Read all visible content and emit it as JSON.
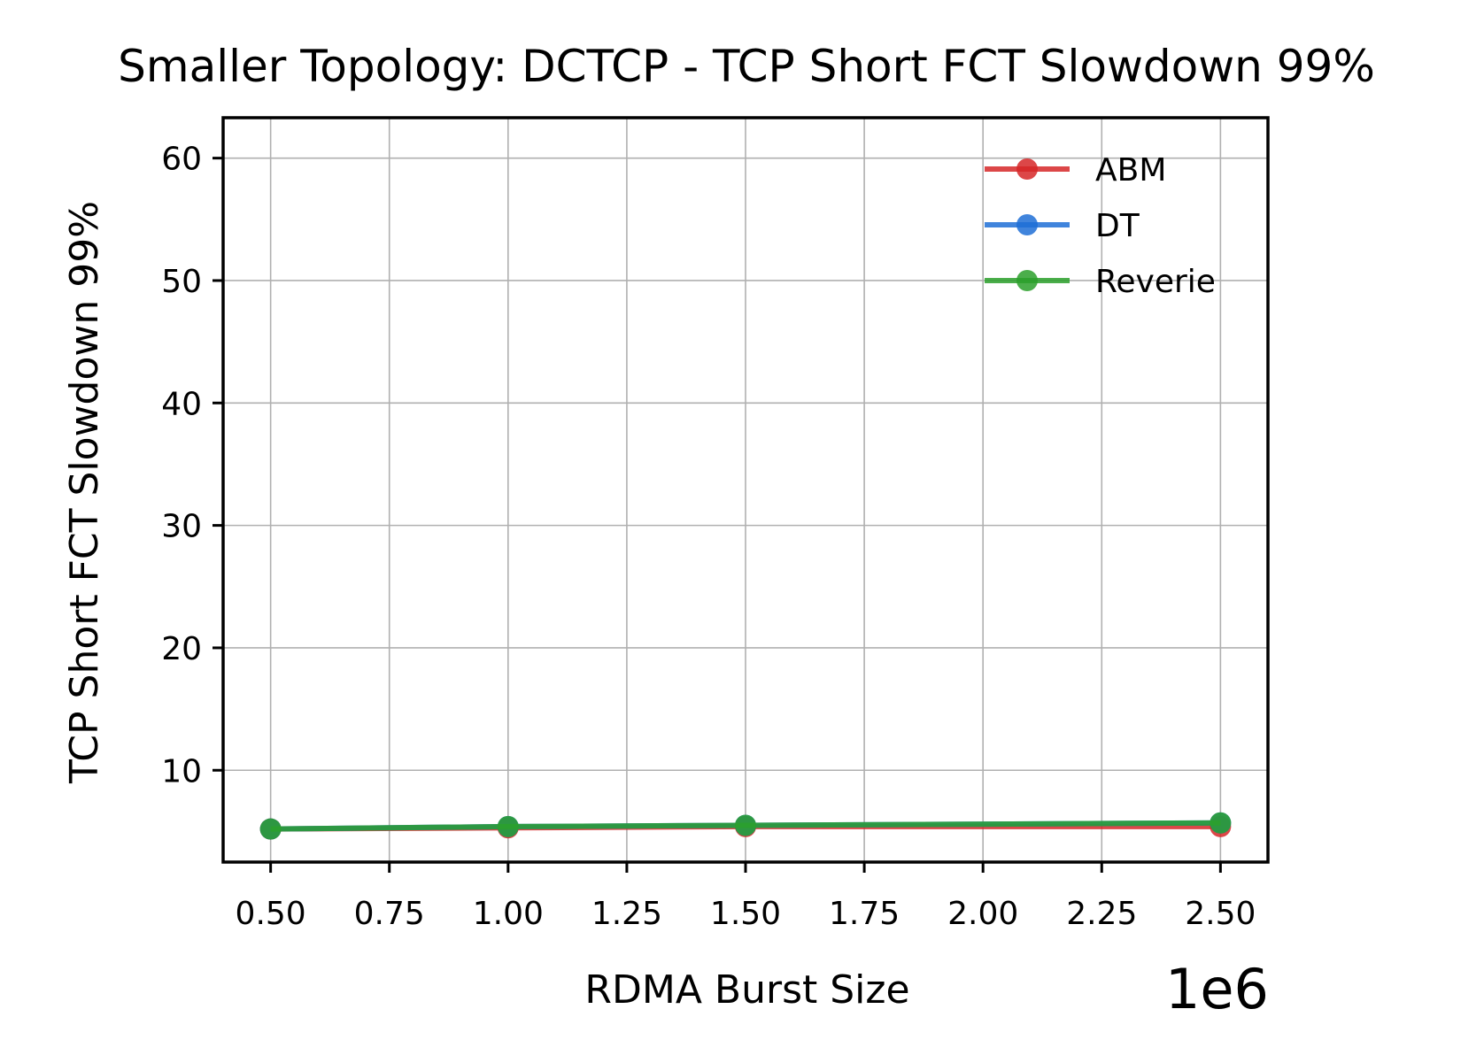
{
  "chart_data": {
    "type": "line",
    "title": "Smaller Topology: DCTCP - TCP Short FCT Slowdown 99%",
    "xlabel": "RDMA Burst Size",
    "ylabel": "TCP Short FCT Slowdown 99%",
    "x_offset_label": "1e6",
    "x": [
      500000,
      1000000,
      1500000,
      2000000,
      2500000
    ],
    "xlim": [
      400000,
      2600000
    ],
    "ylim": [
      2.5,
      63.3
    ],
    "xticks": [
      500000,
      750000,
      1000000,
      1250000,
      1500000,
      1750000,
      2000000,
      2250000,
      2500000
    ],
    "xtick_labels": [
      "0.50",
      "0.75",
      "1.00",
      "1.25",
      "1.50",
      "1.75",
      "2.00",
      "2.25",
      "2.50"
    ],
    "yticks": [
      10,
      20,
      30,
      40,
      50,
      60
    ],
    "ytick_labels": [
      "10",
      "20",
      "30",
      "40",
      "50",
      "60"
    ],
    "grid": true,
    "legend_position": "top-right",
    "series": [
      {
        "name": "ABM",
        "color": "#d62728",
        "x": [
          500000,
          1000000,
          1500000,
          2500000
        ],
        "values": [
          5.2,
          5.3,
          5.4,
          5.4
        ]
      },
      {
        "name": "DT",
        "color": "#1f6fd6",
        "x": [
          500000,
          1000000,
          1500000,
          2500000
        ],
        "values": [
          5.2,
          5.4,
          5.5,
          5.7
        ]
      },
      {
        "name": "Reverie",
        "color": "#2ca02c",
        "x": [
          500000,
          1000000,
          1500000,
          2500000
        ],
        "values": [
          5.2,
          5.4,
          5.5,
          5.7
        ]
      }
    ]
  }
}
